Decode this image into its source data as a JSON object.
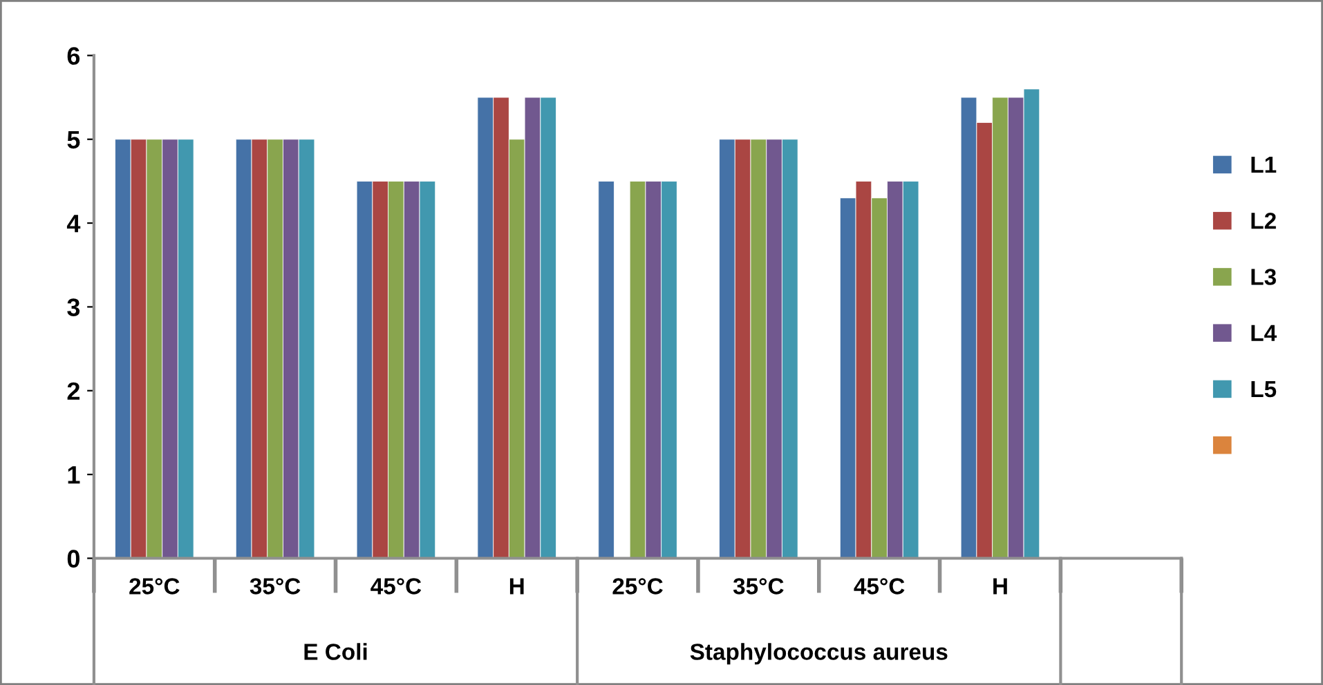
{
  "chart_data": {
    "type": "bar",
    "categories": [
      "25°C",
      "35°C",
      "45°C",
      "H",
      "25°C",
      "35°C",
      "45°C",
      "H",
      null
    ],
    "series": [
      {
        "name": "L1",
        "color": "#4572a7",
        "values": [
          5,
          5,
          4.5,
          5.5,
          4.5,
          5,
          4.3,
          5.5,
          null
        ]
      },
      {
        "name": "L2",
        "color": "#aa4643",
        "values": [
          5,
          5,
          4.5,
          5.5,
          null,
          5,
          4.5,
          5.2,
          null
        ]
      },
      {
        "name": "L3",
        "color": "#89a54e",
        "values": [
          5,
          5,
          4.5,
          5,
          4.5,
          5,
          4.3,
          5.5,
          null
        ]
      },
      {
        "name": "L4",
        "color": "#71588f",
        "values": [
          5,
          5,
          4.5,
          5.5,
          4.5,
          5,
          4.5,
          5.5,
          null
        ]
      },
      {
        "name": "L5",
        "color": "#4198af",
        "values": [
          5,
          5,
          4.5,
          5.5,
          4.5,
          5,
          4.5,
          5.6,
          null
        ]
      },
      {
        "color": "#db843d",
        "values": [
          null,
          null,
          null,
          null,
          null,
          null,
          null,
          null,
          null
        ]
      }
    ],
    "annotations": [
      "E Coli",
      "Staphylococcus aureus"
    ],
    "ylim": [
      0,
      6
    ],
    "yticks": [
      0,
      1,
      2,
      3,
      4,
      5,
      6
    ],
    "legend": "right"
  }
}
